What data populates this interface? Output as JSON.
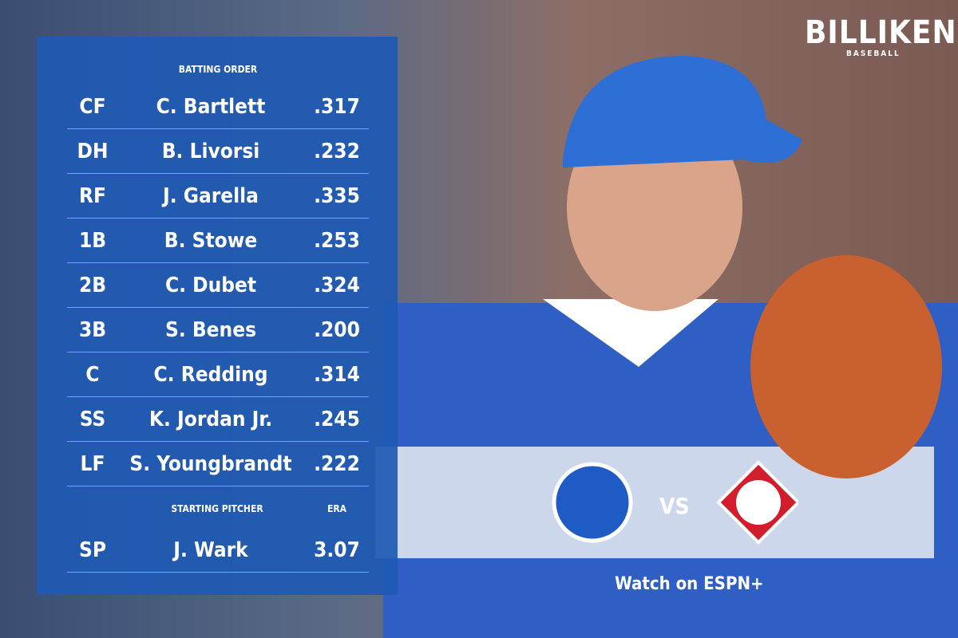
{
  "brand": {
    "title": "BILLIKENS",
    "subtitle": "BASEBALL"
  },
  "lineup": {
    "heading": "BATTING ORDER",
    "rows": [
      [
        "CF",
        "C. Bartlett",
        ".317"
      ],
      [
        "DH",
        "B. Livorsi",
        ".232"
      ],
      [
        "RF",
        "J. Garella",
        ".335"
      ],
      [
        "1B",
        "B. Stowe",
        ".253"
      ],
      [
        "2B",
        "C. Dubet",
        ".324"
      ],
      [
        "3B",
        "S. Benes",
        ".200"
      ],
      [
        "C",
        "C. Redding",
        ".314"
      ],
      [
        "SS",
        "K. Jordan Jr.",
        ".245"
      ],
      [
        "LF",
        "S. Youngbrandt",
        ".222"
      ]
    ],
    "pitcher_heading": "STARTING PITCHER",
    "pitcher_stat_heading": "ERA",
    "pitcher": [
      "SP",
      "J. Wark",
      "3.07"
    ]
  },
  "matchup": {
    "versus": "VS",
    "broadcast": "Watch on ESPN+"
  }
}
